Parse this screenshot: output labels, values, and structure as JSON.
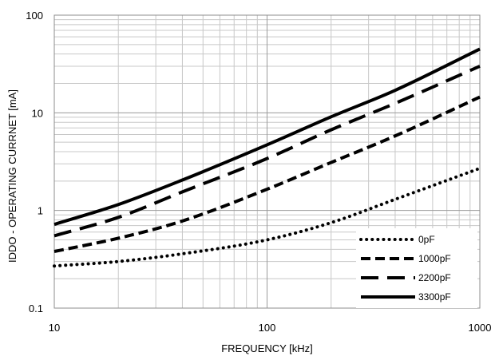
{
  "chart_data": {
    "type": "line",
    "xlabel": "FREQUENCY [kHz]",
    "ylabel": "IDDO - OPERATING CURRNET [mA]",
    "xscale": "log",
    "yscale": "log",
    "xlim": [
      10,
      1000
    ],
    "ylim": [
      0.1,
      100
    ],
    "xticks": [
      "10",
      "100",
      "1000"
    ],
    "yticks": [
      "0.1",
      "1",
      "10",
      "100"
    ],
    "grid": true,
    "legend_position": "bottom-right",
    "x": [
      10,
      20,
      40,
      100,
      200,
      400,
      1000
    ],
    "series": [
      {
        "name": "0pF",
        "style": "dotted",
        "values": [
          0.27,
          0.3,
          0.36,
          0.5,
          0.75,
          1.3,
          2.7
        ]
      },
      {
        "name": "1000pF",
        "style": "short-dash",
        "values": [
          0.38,
          0.52,
          0.78,
          1.65,
          3.1,
          5.8,
          14.5
        ]
      },
      {
        "name": "2200pF",
        "style": "long-dash",
        "values": [
          0.55,
          0.85,
          1.55,
          3.4,
          6.7,
          12.5,
          30.0
        ]
      },
      {
        "name": "3300pF",
        "style": "solid",
        "values": [
          0.72,
          1.15,
          2.05,
          4.7,
          9.1,
          17.0,
          45.0
        ]
      }
    ]
  }
}
